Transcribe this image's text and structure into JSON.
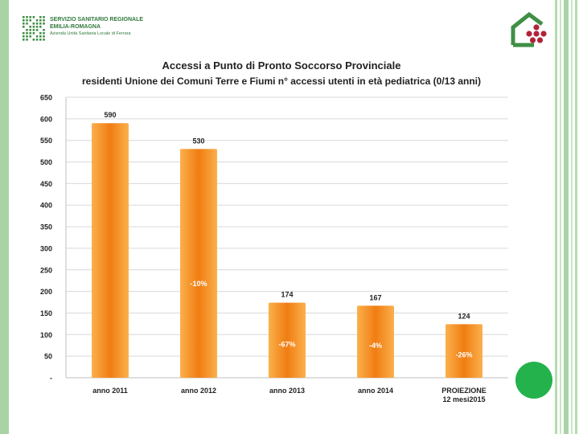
{
  "header": {
    "org_line1": "SERVIZIO SANITARIO REGIONALE",
    "org_line2": "EMILIA-ROMAGNA",
    "org_line3": "Azienda Unità Sanitaria Locale di Ferrara"
  },
  "colors": {
    "bar_light": "#fbb04c",
    "bar_dark": "#f07d12",
    "axis_text": "#222222",
    "grid": "#d9d9d9",
    "left_band": "#a9d3a4",
    "logo_green": "#3f8f45",
    "logo_red": "#b0243a",
    "dot_green": "#23b24b"
  },
  "chart_data": {
    "type": "bar",
    "title": "Accessi a Punto di Pronto Soccorso Provinciale",
    "subtitle": "residenti Unione dei Comuni Terre e Fiumi  n° accessi utenti in età pediatrica (0/13 anni)",
    "categories": [
      "anno 2011",
      "anno 2012",
      "anno 2013",
      "anno 2014",
      "PROIEZIONE 12 mesi2015"
    ],
    "category_lines": [
      [
        "anno 2011"
      ],
      [
        "anno 2012"
      ],
      [
        "anno 2013"
      ],
      [
        "anno 2014"
      ],
      [
        "PROIEZIONE",
        "12 mesi2015"
      ]
    ],
    "values": [
      590,
      530,
      174,
      167,
      124
    ],
    "value_labels": [
      "590",
      "530",
      "174",
      "167",
      "124"
    ],
    "change_labels": [
      "",
      "-10%",
      "-67%",
      "-4%",
      "-26%"
    ],
    "ylim": [
      0,
      650
    ],
    "yticks": [
      0,
      50,
      100,
      150,
      200,
      250,
      300,
      350,
      400,
      450,
      500,
      550,
      600,
      650
    ],
    "ytick_labels": [
      "-",
      "50",
      "100",
      "150",
      "200",
      "250",
      "300",
      "350",
      "400",
      "450",
      "500",
      "550",
      "600",
      "650"
    ],
    "grid": true,
    "xlabel": "",
    "ylabel": ""
  }
}
